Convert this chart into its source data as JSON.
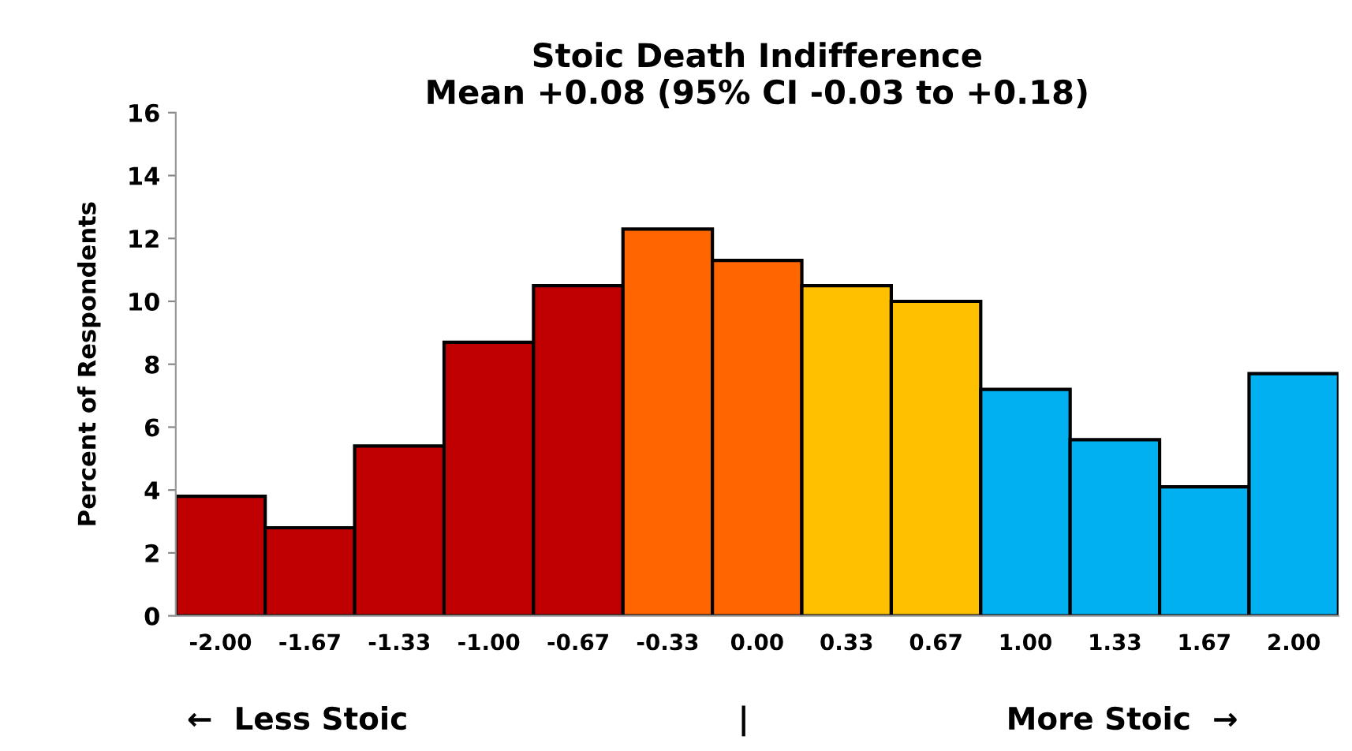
{
  "chart_data": {
    "type": "bar",
    "title": "Stoic Death Indifference\nMean +0.08 (95% CI -0.03 to +0.18)",
    "ylabel": "Percent of Respondents",
    "categories": [
      "-2.00",
      "-1.67",
      "-1.33",
      "-1.00",
      "-0.67",
      "-0.33",
      "0.00",
      "0.33",
      "0.67",
      "1.00",
      "1.33",
      "1.67",
      "2.00"
    ],
    "values": [
      3.8,
      2.8,
      5.4,
      8.7,
      10.5,
      12.3,
      11.3,
      10.5,
      10.0,
      7.2,
      5.6,
      4.1,
      7.7
    ],
    "colors": [
      "#c00000",
      "#c00000",
      "#c00000",
      "#c00000",
      "#c00000",
      "#ff6600",
      "#ff6600",
      "#ffc000",
      "#ffc000",
      "#00b0f0",
      "#00b0f0",
      "#00b0f0",
      "#00b0f0"
    ],
    "ylim": [
      0,
      16
    ],
    "yticks": [
      0,
      2,
      4,
      6,
      8,
      10,
      12,
      14,
      16
    ],
    "grid": false,
    "legend": false,
    "annotations": [
      "←  Less Stoic",
      "|",
      "More Stoic  →"
    ]
  }
}
